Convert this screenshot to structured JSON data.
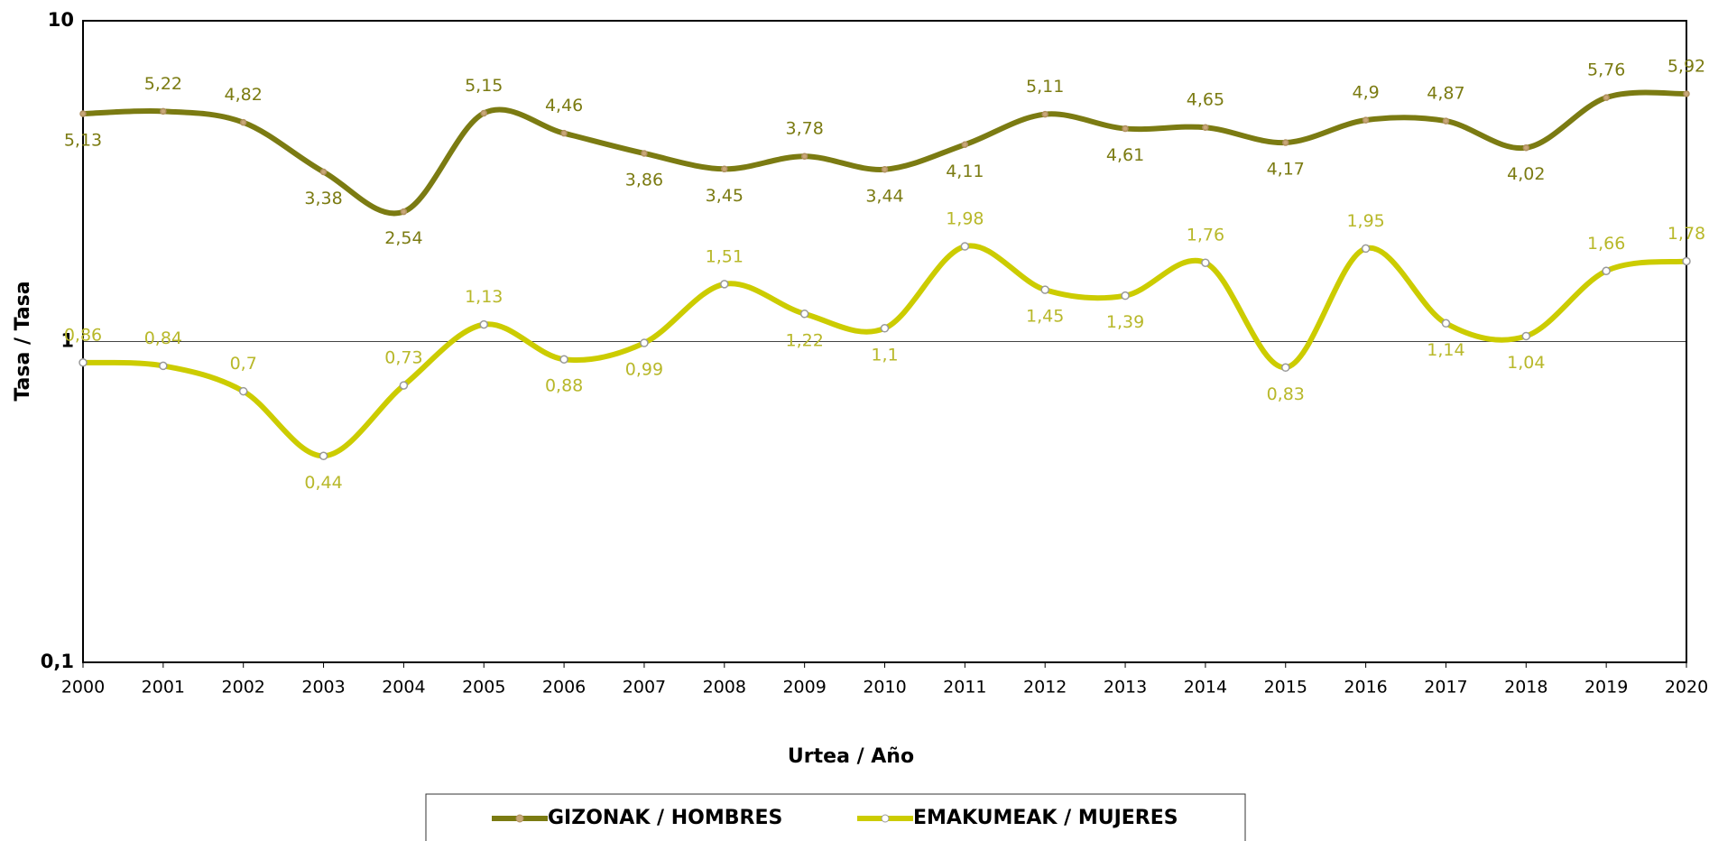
{
  "chart_data": {
    "type": "line",
    "x_label": "Urtea / Año",
    "y_label": "Tasa / Tasa",
    "x": [
      2000,
      2001,
      2002,
      2003,
      2004,
      2005,
      2006,
      2007,
      2008,
      2009,
      2010,
      2011,
      2012,
      2013,
      2014,
      2015,
      2016,
      2017,
      2018,
      2019,
      2020
    ],
    "xlim": [
      2000,
      2020
    ],
    "ylim": [
      0.1,
      10
    ],
    "log_y": true,
    "grid": true,
    "yticks": [
      {
        "value": 0.1,
        "label": "0,1"
      },
      1,
      10
    ],
    "legend": "bottom",
    "series": [
      {
        "name": "GIZONAK / HOMBRES",
        "color": "#7b7b12",
        "values": [
          5.13,
          5.22,
          4.82,
          3.38,
          2.54,
          5.15,
          4.46,
          3.86,
          3.45,
          3.78,
          3.44,
          4.11,
          5.11,
          4.61,
          4.65,
          4.17,
          4.9,
          4.87,
          4.02,
          5.76,
          5.92
        ],
        "value_labels": [
          "5,13",
          "5,22",
          "4,82",
          "3,38",
          "2,54",
          "5,15",
          "4,46",
          "3,86",
          "3,45",
          "3,78",
          "3,44",
          "4,11",
          "5,11",
          "4,61",
          "4,65",
          "4,17",
          "4,9",
          "4,87",
          "4,02",
          "5,76",
          "5,92"
        ]
      },
      {
        "name": "EMAKUMEAK / MUJERES",
        "color": "#cccc00",
        "values": [
          0.86,
          0.84,
          0.7,
          0.44,
          0.73,
          1.13,
          0.88,
          0.99,
          1.51,
          1.22,
          1.1,
          1.98,
          1.45,
          1.39,
          1.76,
          0.83,
          1.95,
          1.14,
          1.04,
          1.66,
          1.78
        ],
        "value_labels": [
          "0,86",
          "0,84",
          "0,7",
          "0,44",
          "0,73",
          "1,13",
          "0,88",
          "0,99",
          "1,51",
          "1,22",
          "1,1",
          "1,98",
          "1,45",
          "1,39",
          "1,76",
          "0,83",
          "1,95",
          "1,14",
          "1,04",
          "1,66",
          "1,78"
        ]
      }
    ]
  }
}
